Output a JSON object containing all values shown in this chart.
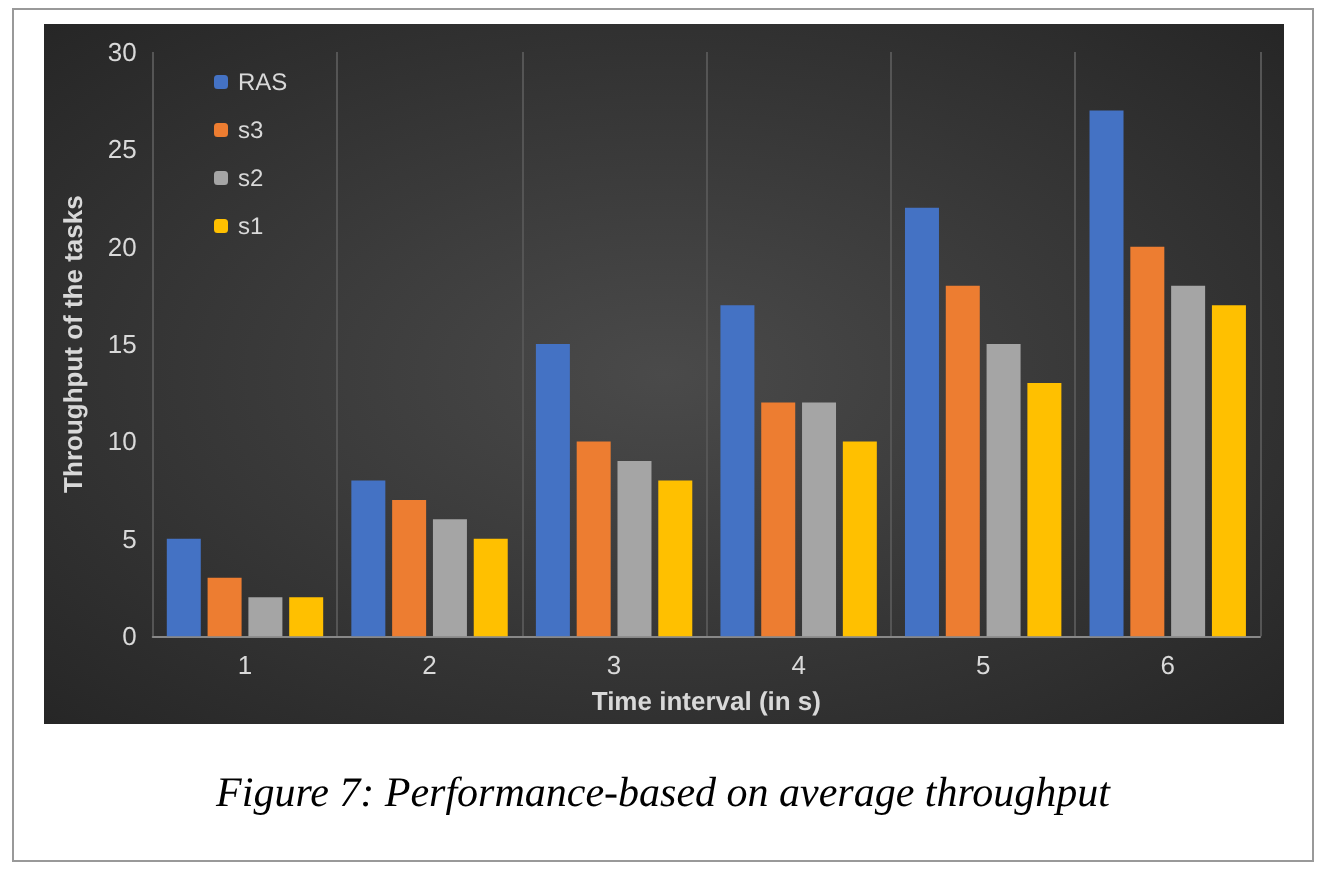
{
  "chart_data": {
    "type": "bar",
    "xlabel": "Time interval (in s)",
    "ylabel": "Throughput of the tasks",
    "categories": [
      "1",
      "2",
      "3",
      "4",
      "5",
      "6"
    ],
    "series": [
      {
        "name": "RAS",
        "color": "#4472c4",
        "values": [
          5,
          8,
          15,
          17,
          22,
          27
        ]
      },
      {
        "name": "s3",
        "color": "#ed7d31",
        "values": [
          3,
          7,
          10,
          12,
          18,
          20
        ]
      },
      {
        "name": "s2",
        "color": "#a5a5a5",
        "values": [
          2,
          6,
          9,
          12,
          15,
          18
        ]
      },
      {
        "name": "s1",
        "color": "#ffc000",
        "values": [
          2,
          5,
          8,
          10,
          13,
          17
        ]
      }
    ],
    "ylim": [
      0,
      30
    ],
    "yticks": [
      0,
      5,
      10,
      15,
      20,
      25,
      30
    ],
    "grid": "x",
    "legend": "top left",
    "annotations": [
      "Figure 7: Performance-based on average throughput"
    ]
  }
}
